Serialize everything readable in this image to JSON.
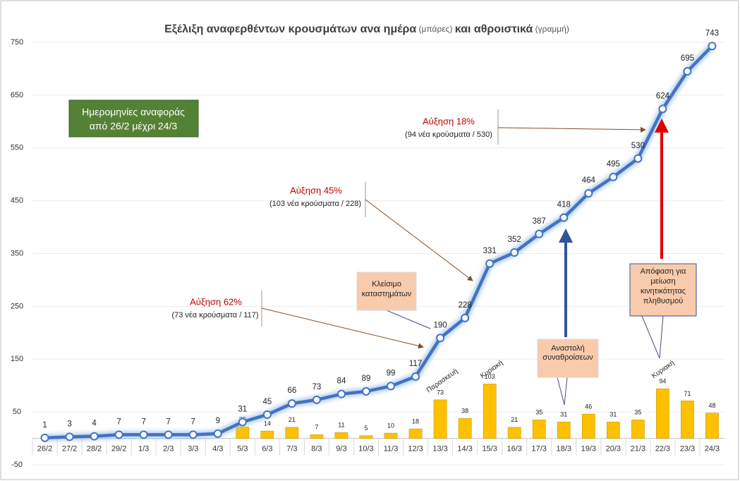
{
  "chart_data": {
    "type": "combo",
    "title_parts": [
      "Εξέλιξη αναφερθέντων κρουσμάτων ανα ημέρα",
      "(μπάρες)",
      "και αθροιστικά",
      "(γραμμή)"
    ],
    "categories": [
      "26/2",
      "27/2",
      "28/2",
      "29/2",
      "1/3",
      "2/3",
      "3/3",
      "4/3",
      "5/3",
      "6/3",
      "7/3",
      "8/3",
      "9/3",
      "10/3",
      "11/3",
      "12/3",
      "13/3",
      "14/3",
      "15/3",
      "16/3",
      "17/3",
      "18/3",
      "19/3",
      "20/3",
      "21/3",
      "22/3",
      "23/3",
      "24/3"
    ],
    "series": [
      {
        "type": "bar",
        "color": "#ffc000",
        "values": [
          null,
          null,
          null,
          null,
          null,
          null,
          null,
          null,
          22,
          14,
          21,
          7,
          11,
          5,
          10,
          18,
          73,
          38,
          103,
          21,
          35,
          31,
          46,
          31,
          35,
          94,
          71,
          48
        ]
      },
      {
        "type": "line",
        "color": "#4472c4",
        "values": [
          1,
          3,
          4,
          7,
          7,
          7,
          7,
          9,
          31,
          45,
          66,
          73,
          84,
          89,
          99,
          117,
          190,
          228,
          331,
          352,
          387,
          418,
          464,
          495,
          530,
          624,
          695,
          743
        ]
      }
    ],
    "ylim": [
      -50,
      750
    ],
    "yticks": [
      -50,
      50,
      150,
      250,
      350,
      450,
      550,
      650,
      750
    ],
    "grid": true,
    "date_range": [
      "Ημερομηνίες αναφοράς",
      "από 26/2 μέχρι 24/3"
    ],
    "growth_notes": [
      {
        "text": "Αύξηση 62%",
        "note": "(73 νέα κρούσματα / 117)"
      },
      {
        "text": "Αύξηση 45%",
        "note": "(103 νέα κρούσματα / 228)"
      },
      {
        "text": "Αύξηση 18%",
        "note": "(94 νέα κρούσματα / 530)"
      }
    ],
    "measures": [
      [
        "Κλείσιμο",
        "καταστημάτων"
      ],
      [
        "Αναστολή",
        "συναθροίσεων"
      ],
      [
        "Απόφαση για",
        "μείωση",
        "κινητικότητας",
        "πληθυσμού"
      ]
    ],
    "weekday_labels": [
      "Παρασκευή",
      "Κυριακή",
      "Κυριακή"
    ]
  }
}
